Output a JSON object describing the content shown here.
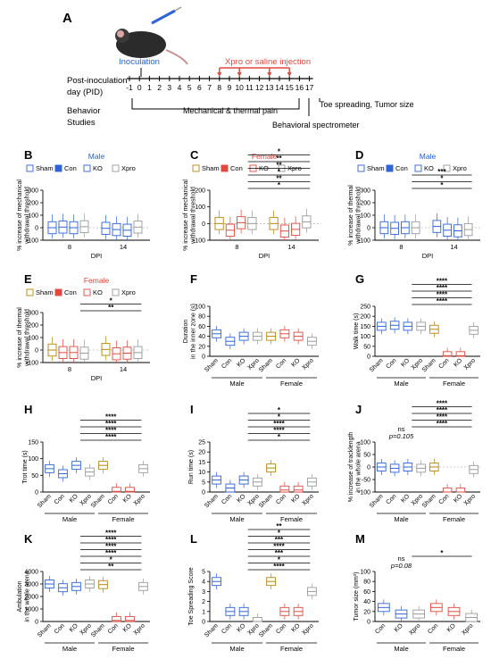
{
  "timeline": {
    "panel": "A",
    "axis_label_1": "Post-inoculation",
    "axis_label_2": "day (PID)",
    "behavior_label_1": "Behavior",
    "behavior_label_2": "Studies",
    "inoculation": "Inoculation",
    "injection": "Xpro or saline injection",
    "days": [
      "-1",
      "0",
      "1",
      "2",
      "3",
      "4",
      "5",
      "6",
      "7",
      "8",
      "9",
      "10",
      "11",
      "12",
      "13",
      "14",
      "15",
      "16",
      "17"
    ],
    "injection_days": [
      8,
      10,
      13,
      15
    ],
    "pain": "Mechanical & thermal pain",
    "spectrometer": "Behavioral spectrometer",
    "toe": "Toe spreading, Tumor size",
    "colors": {
      "inoculation": "#1f5fd6",
      "injection": "#e0493f",
      "axis": "#000000"
    }
  },
  "legend": {
    "sham": "Sham",
    "con": "Con",
    "ko": "KO",
    "xpro": "Xpro"
  },
  "colors": {
    "blue": "#2f63d8",
    "red": "#e0493f",
    "gray": "#9a9a9a",
    "gold": "#b8860b",
    "male_title": "#1f5fd6",
    "female_title": "#e0493f"
  },
  "chart_data": [
    {
      "panel": "B",
      "type": "box",
      "title": "Male",
      "ylabel": "% increase of mechanical\nwithdrawal threshold",
      "xlabel": "DPI",
      "ylim": [
        -100,
        300
      ],
      "yticks": [
        "300",
        "200",
        "100",
        "0",
        "-100"
      ],
      "categories": [
        "8",
        "14"
      ],
      "groups": [
        "Sham",
        "Con",
        "KO",
        "Xpro"
      ],
      "medians": [
        [
          0,
          5,
          0,
          8
        ],
        [
          -5,
          -15,
          -20,
          5
        ]
      ]
    },
    {
      "panel": "C",
      "type": "box",
      "title": "Female",
      "ylabel": "% increase of mechanical\nwithdrawal threshold",
      "xlabel": "DPI",
      "ylim": [
        -100,
        200
      ],
      "yticks": [
        "200",
        "100",
        "0",
        "-100"
      ],
      "categories": [
        "8",
        "14"
      ],
      "groups": [
        "Sham",
        "Con",
        "KO",
        "Xpro"
      ],
      "medians": [
        [
          0,
          -40,
          5,
          0
        ],
        [
          0,
          -45,
          -35,
          10
        ]
      ],
      "annotations": [
        "*",
        "**",
        "*",
        "**",
        "**",
        "*"
      ]
    },
    {
      "panel": "D",
      "type": "box",
      "title": "Male",
      "ylabel": "% increase of thermal\nwithdrawal threshold",
      "xlabel": "DPI",
      "ylim": [
        -100,
        300
      ],
      "yticks": [
        "300",
        "200",
        "100",
        "0",
        "-100"
      ],
      "categories": [
        "8",
        "14"
      ],
      "groups": [
        "Sham",
        "Con",
        "KO",
        "Xpro"
      ],
      "medians": [
        [
          0,
          -5,
          0,
          0
        ],
        [
          10,
          -20,
          -25,
          -15
        ]
      ],
      "annotations": [
        "*",
        "*",
        "***"
      ]
    },
    {
      "panel": "E",
      "type": "box",
      "title": "Female",
      "ylabel": "% increase of thermal\nwithdrawal threshold",
      "xlabel": "DPI",
      "ylim": [
        -100,
        300
      ],
      "yticks": [
        "300",
        "200",
        "100",
        "0",
        "-100"
      ],
      "categories": [
        "8",
        "14"
      ],
      "groups": [
        "Sham",
        "Con",
        "KO",
        "Xpro"
      ],
      "medians": [
        [
          0,
          -20,
          -20,
          -25
        ],
        [
          5,
          -30,
          -25,
          -20
        ]
      ],
      "annotations": [
        "**",
        "*"
      ]
    },
    {
      "panel": "F",
      "type": "box",
      "ylabel": "Duration\nin the inner zone (s)",
      "ylim": [
        0,
        100
      ],
      "yticks": [
        "100",
        "80",
        "60",
        "40",
        "20",
        "0"
      ],
      "categories": [
        "Sham",
        "Con",
        "KO",
        "Xpro",
        "Sham",
        "Con",
        "KO",
        "Xpro"
      ],
      "sex": [
        "Male",
        "Female"
      ],
      "medians": [
        45,
        30,
        40,
        40,
        40,
        45,
        40,
        30
      ]
    },
    {
      "panel": "G",
      "type": "box",
      "ylabel": "Walk time (s)",
      "ylim": [
        0,
        250
      ],
      "yticks": [
        "250",
        "200",
        "150",
        "100",
        "50",
        "0"
      ],
      "categories": [
        "Sham",
        "Con",
        "KO",
        "Xpro",
        "Sham",
        "Con",
        "KO",
        "Xpro"
      ],
      "sex": [
        "Male",
        "Female"
      ],
      "medians": [
        150,
        155,
        150,
        150,
        135,
        3,
        3,
        130
      ],
      "annotations": [
        "****",
        "****",
        "****",
        "****"
      ]
    },
    {
      "panel": "H",
      "type": "box",
      "ylabel": "Trot time (s)",
      "ylim": [
        0,
        150
      ],
      "yticks": [
        "150",
        "100",
        "50",
        "0"
      ],
      "categories": [
        "Sham",
        "Con",
        "KO",
        "Xpro",
        "Sham",
        "Con",
        "KO",
        "Xpro"
      ],
      "sex": [
        "Male",
        "Female"
      ],
      "medians": [
        70,
        55,
        80,
        60,
        80,
        2,
        2,
        70
      ],
      "annotations": [
        "****",
        "****",
        "****",
        "****"
      ]
    },
    {
      "panel": "I",
      "type": "box",
      "ylabel": "Run time (s)",
      "ylim": [
        0,
        25
      ],
      "yticks": [
        "25",
        "20",
        "15",
        "10",
        "5",
        "0"
      ],
      "categories": [
        "Sham",
        "Con",
        "KO",
        "Xpro",
        "Sham",
        "Con",
        "KO",
        "Xpro"
      ],
      "sex": [
        "Male",
        "Female"
      ],
      "medians": [
        6,
        2,
        6,
        5,
        12,
        1,
        1,
        5
      ],
      "annotations": [
        "*",
        "****",
        "****",
        "*",
        "*"
      ]
    },
    {
      "panel": "J",
      "type": "box",
      "ylabel": "% increase of tracklength\nin the whole arena",
      "ylim": [
        -100,
        100
      ],
      "yticks": [
        "100",
        "50",
        "0",
        "-50",
        "-100"
      ],
      "categories": [
        "Sham",
        "Con",
        "KO",
        "Xpro",
        "Sham",
        "Con",
        "KO",
        "Xpro"
      ],
      "sex": [
        "Male",
        "Female"
      ],
      "medians": [
        0,
        -5,
        0,
        -5,
        0,
        -100,
        -100,
        -10
      ],
      "annotations": [
        "p=0.105",
        "ns",
        "****",
        "****",
        "****",
        "****"
      ]
    },
    {
      "panel": "K",
      "type": "box",
      "ylabel": "Ambulation\nin the whole arena",
      "ylim": [
        0,
        4000
      ],
      "yticks": [
        "4000",
        "3000",
        "2000",
        "1000",
        "0"
      ],
      "categories": [
        "Sham",
        "Con",
        "KO",
        "Xpro",
        "Sham",
        "Con",
        "KO",
        "Xpro"
      ],
      "sex": [
        "Male",
        "Female"
      ],
      "medians": [
        3000,
        2700,
        2800,
        3000,
        2950,
        80,
        80,
        2800
      ],
      "annotations": [
        "**",
        "*",
        "****",
        "****",
        "****",
        "****"
      ]
    },
    {
      "panel": "L",
      "type": "box",
      "ylabel": "Toe Spreading Score",
      "ylim": [
        0,
        5
      ],
      "yticks": [
        "5",
        "4",
        "3",
        "2",
        "1",
        "0"
      ],
      "categories": [
        "Sham",
        "Con",
        "KO",
        "Xpro",
        "Sham",
        "Con",
        "KO",
        "Xpro"
      ],
      "sex": [
        "Male",
        "Female"
      ],
      "medians": [
        4,
        1,
        1,
        0,
        4,
        1,
        1,
        3
      ],
      "annotations": [
        "****",
        "*",
        "***",
        "****",
        "***",
        "*",
        "**"
      ]
    },
    {
      "panel": "M",
      "type": "box",
      "ylabel": "Tumor size (mm³)",
      "ylim": [
        0,
        100
      ],
      "yticks": [
        "100",
        "80",
        "60",
        "40",
        "20",
        "0"
      ],
      "categories": [
        "Con",
        "KO",
        "Xpro",
        "Con",
        "KO",
        "Xpro"
      ],
      "sex": [
        "Male",
        "Female"
      ],
      "medians": [
        28,
        15,
        15,
        28,
        20,
        8
      ],
      "annotations": [
        "p=0.08",
        "ns",
        "*"
      ]
    }
  ]
}
